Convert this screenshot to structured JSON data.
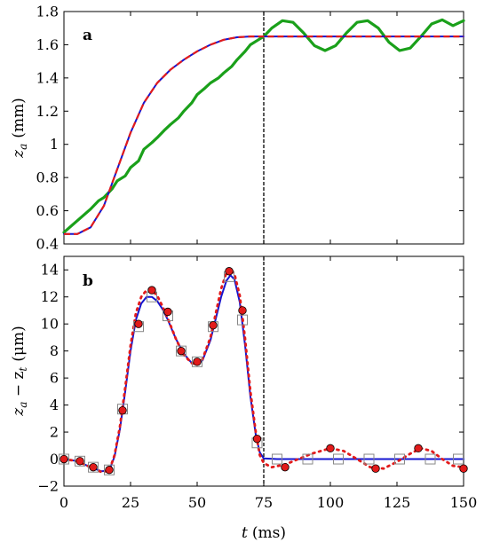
{
  "chart_data": [
    {
      "type": "line",
      "panel_label": "a",
      "ylabel_main": "z",
      "ylabel_sub": "a",
      "ylabel_unit": "(mm)",
      "xlim": [
        0,
        150
      ],
      "ylim": [
        0.4,
        1.8
      ],
      "yticks": [
        0.4,
        0.6,
        0.8,
        1,
        1.2,
        1.4,
        1.6,
        1.8
      ],
      "ytick_labels": [
        "0.4",
        "0.6",
        "0.8",
        "1",
        "1.2",
        "1.4",
        "1.6",
        "1.8"
      ],
      "xticks": [
        0,
        25,
        50,
        75,
        100,
        125,
        150
      ],
      "vline_x": 75,
      "series": [
        {
          "color": "#1515d0",
          "style": "solid",
          "width": 2,
          "x": [
            0,
            5,
            10,
            15,
            20,
            25,
            30,
            35,
            40,
            45,
            50,
            55,
            60,
            65,
            70,
            75,
            150
          ],
          "y": [
            0.46,
            0.46,
            0.5,
            0.63,
            0.85,
            1.07,
            1.25,
            1.37,
            1.45,
            1.51,
            1.56,
            1.6,
            1.63,
            1.645,
            1.65,
            1.65,
            1.65
          ]
        },
        {
          "color": "#e21b1b",
          "style": "dashed",
          "width": 2.2,
          "x": [
            0,
            5,
            10,
            15,
            20,
            25,
            30,
            35,
            40,
            45,
            50,
            55,
            60,
            65,
            70,
            75,
            150
          ],
          "y": [
            0.46,
            0.46,
            0.5,
            0.63,
            0.85,
            1.07,
            1.25,
            1.37,
            1.45,
            1.51,
            1.56,
            1.6,
            1.63,
            1.645,
            1.65,
            1.65,
            1.65
          ]
        },
        {
          "color": "#1aa01a",
          "style": "solid",
          "width": 3.2,
          "x": [
            0,
            5,
            10,
            13,
            15,
            18,
            20,
            23,
            25,
            28,
            30,
            33,
            35,
            38,
            40,
            43,
            45,
            48,
            50,
            53,
            55,
            58,
            60,
            63,
            65,
            68,
            70,
            73,
            75,
            78,
            82,
            86,
            90,
            94,
            98,
            102,
            106,
            110,
            114,
            118,
            122,
            126,
            130,
            134,
            138,
            142,
            146,
            150
          ],
          "y": [
            0.47,
            0.54,
            0.61,
            0.66,
            0.68,
            0.73,
            0.78,
            0.81,
            0.86,
            0.9,
            0.97,
            1.01,
            1.04,
            1.09,
            1.12,
            1.16,
            1.2,
            1.25,
            1.3,
            1.34,
            1.37,
            1.4,
            1.43,
            1.47,
            1.51,
            1.56,
            1.6,
            1.63,
            1.65,
            1.7,
            1.745,
            1.735,
            1.67,
            1.595,
            1.565,
            1.595,
            1.67,
            1.735,
            1.745,
            1.7,
            1.615,
            1.565,
            1.58,
            1.65,
            1.725,
            1.75,
            1.715,
            1.745
          ]
        }
      ]
    },
    {
      "type": "line",
      "panel_label": "b",
      "ylabel_main": "z",
      "ylabel_sub": "a",
      "ylabel_mid": " − z",
      "ylabel_sub2": "t",
      "ylabel_unit": "(μm)",
      "xlabel_main": "t",
      "xlabel_unit": "(ms)",
      "xlim": [
        0,
        150
      ],
      "ylim": [
        -2,
        15
      ],
      "yticks": [
        -2,
        0,
        2,
        4,
        6,
        8,
        10,
        12,
        14
      ],
      "ytick_labels": [
        "−2",
        "0",
        "2",
        "4",
        "6",
        "8",
        "10",
        "12",
        "14"
      ],
      "xticks": [
        0,
        25,
        50,
        75,
        100,
        125,
        150
      ],
      "xtick_labels": [
        "0",
        "25",
        "50",
        "75",
        "100",
        "125",
        "150"
      ],
      "vline_x": 75,
      "series": [
        {
          "color": "#1515d0",
          "style": "solid",
          "width": 2,
          "x": [
            0,
            5,
            10,
            14,
            17,
            19,
            21,
            23,
            25,
            27,
            29,
            31,
            33,
            35,
            37,
            39,
            42,
            45,
            48,
            50,
            52,
            55,
            57,
            59,
            61,
            62.5,
            64,
            66,
            68,
            70,
            72,
            73.5,
            75,
            80,
            150
          ],
          "y": [
            0,
            -0.15,
            -0.6,
            -0.9,
            -0.85,
            0.2,
            2.2,
            5.0,
            8.0,
            10.3,
            11.5,
            12.0,
            12.0,
            11.7,
            11.1,
            10.3,
            8.9,
            7.8,
            7.1,
            7.0,
            7.3,
            8.8,
            10.4,
            12.0,
            13.2,
            13.6,
            13.3,
            11.6,
            8.4,
            4.6,
            1.8,
            0.5,
            0.05,
            0,
            0
          ]
        },
        {
          "color": "#e21b1b",
          "style": "dotted",
          "width": 2.8,
          "x": [
            0,
            5,
            10,
            14,
            17,
            19,
            21,
            23,
            25,
            27,
            29,
            31,
            33,
            35,
            37,
            39,
            42,
            45,
            48,
            50,
            52,
            55,
            57,
            59,
            61,
            62.5,
            64,
            66,
            68,
            70,
            72,
            73.5,
            75,
            78,
            83,
            88,
            93,
            100,
            105,
            110,
            115,
            120,
            125,
            130,
            134,
            138,
            142,
            146,
            150
          ],
          "y": [
            0,
            -0.15,
            -0.6,
            -0.95,
            -0.85,
            0.3,
            2.4,
            5.3,
            8.4,
            10.8,
            12.0,
            12.5,
            12.5,
            12.1,
            11.3,
            10.4,
            8.9,
            7.7,
            7.1,
            7.0,
            7.4,
            9.0,
            10.8,
            12.6,
            13.8,
            14.1,
            13.7,
            12.1,
            8.9,
            5.0,
            2.0,
            0.3,
            -0.3,
            -0.6,
            -0.4,
            0,
            0.4,
            0.8,
            0.6,
            0,
            -0.6,
            -0.7,
            -0.2,
            0.4,
            0.8,
            0.6,
            0,
            -0.5,
            -0.6
          ]
        }
      ],
      "markers_circle": {
        "color": "#e21b1b",
        "x": [
          0,
          6,
          11,
          17,
          22,
          28,
          33,
          39,
          44,
          50,
          56,
          62,
          67,
          72.5,
          83,
          100,
          117,
          133,
          150
        ],
        "y": [
          0,
          -0.15,
          -0.6,
          -0.8,
          3.6,
          10.0,
          12.5,
          10.9,
          8.0,
          7.2,
          9.9,
          13.9,
          11.0,
          1.5,
          -0.6,
          0.8,
          -0.7,
          0.8,
          -0.7
        ]
      },
      "markers_square": {
        "color": "#888888",
        "x": [
          0,
          6,
          11,
          17,
          22,
          28,
          33,
          39,
          44,
          50,
          56,
          62,
          67,
          72.5,
          80,
          91.5,
          103,
          114.5,
          126,
          137.5,
          148
        ],
        "y": [
          0,
          -0.15,
          -0.6,
          -0.8,
          3.7,
          9.8,
          12.0,
          10.6,
          8.0,
          7.2,
          9.8,
          13.5,
          10.3,
          1.2,
          0,
          0,
          0,
          0,
          0,
          0,
          0
        ]
      }
    }
  ]
}
